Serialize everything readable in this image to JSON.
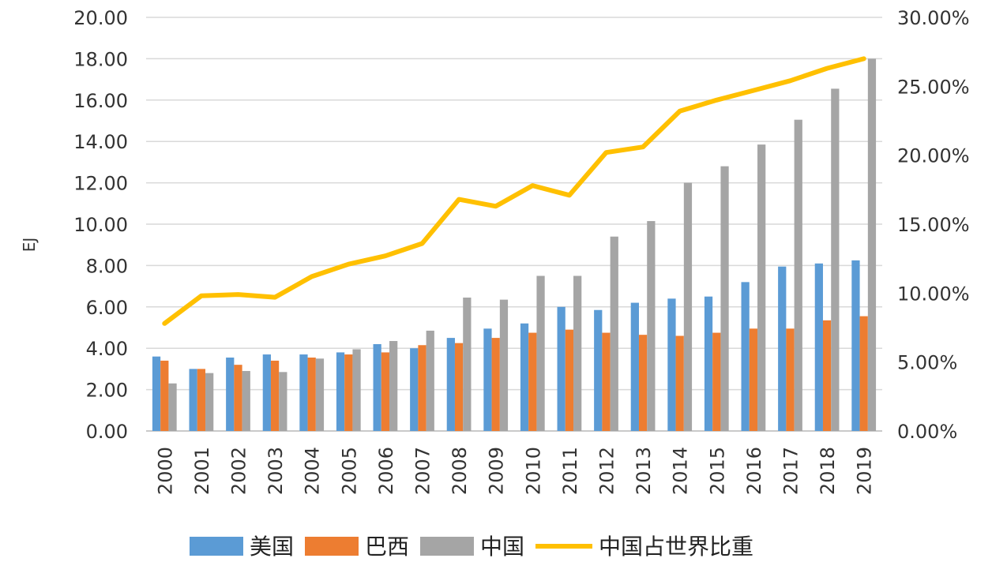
{
  "chart_data": {
    "type": "bar",
    "categories": [
      "2000",
      "2001",
      "2002",
      "2003",
      "2004",
      "2005",
      "2006",
      "2007",
      "2008",
      "2009",
      "2010",
      "2011",
      "2012",
      "2013",
      "2014",
      "2015",
      "2016",
      "2017",
      "2018",
      "2019"
    ],
    "series": [
      {
        "name": "美国",
        "type": "bar",
        "axis": "left",
        "color": "#5B9BD5",
        "values": [
          3.6,
          3.0,
          3.55,
          3.7,
          3.7,
          3.8,
          4.2,
          4.0,
          4.5,
          4.95,
          5.2,
          6.0,
          5.85,
          6.2,
          6.4,
          6.5,
          7.2,
          7.95,
          8.1,
          8.25
        ]
      },
      {
        "name": "巴西",
        "type": "bar",
        "axis": "left",
        "color": "#ED7D31",
        "values": [
          3.4,
          3.0,
          3.2,
          3.4,
          3.55,
          3.7,
          3.8,
          4.15,
          4.25,
          4.5,
          4.75,
          4.9,
          4.75,
          4.65,
          4.6,
          4.75,
          4.95,
          4.95,
          5.35,
          5.55
        ]
      },
      {
        "name": "中国",
        "type": "bar",
        "axis": "left",
        "color": "#A5A5A5",
        "values": [
          2.3,
          2.8,
          2.9,
          2.85,
          3.5,
          3.95,
          4.35,
          4.85,
          6.45,
          6.35,
          7.5,
          7.5,
          9.4,
          10.15,
          12.0,
          12.8,
          13.85,
          15.05,
          16.55,
          18.0
        ]
      },
      {
        "name": "中国占世界比重",
        "type": "line",
        "axis": "right",
        "color": "#FFC000",
        "values": [
          7.8,
          9.8,
          9.9,
          9.7,
          11.2,
          12.1,
          12.7,
          13.6,
          16.8,
          16.3,
          17.8,
          17.1,
          20.2,
          20.6,
          23.2,
          24.0,
          24.7,
          25.4,
          26.3,
          27.0
        ]
      }
    ],
    "y_left": {
      "label": "EJ",
      "min": 0,
      "max": 20,
      "ticks": [
        "0.00",
        "2.00",
        "4.00",
        "6.00",
        "8.00",
        "10.00",
        "12.00",
        "14.00",
        "16.00",
        "18.00",
        "20.00"
      ]
    },
    "y_right": {
      "min": 0,
      "max": 30,
      "ticks": [
        "0.00%",
        "5.00%",
        "10.00%",
        "15.00%",
        "20.00%",
        "25.00%",
        "30.00%"
      ]
    },
    "grid": true,
    "legend_position": "bottom"
  }
}
